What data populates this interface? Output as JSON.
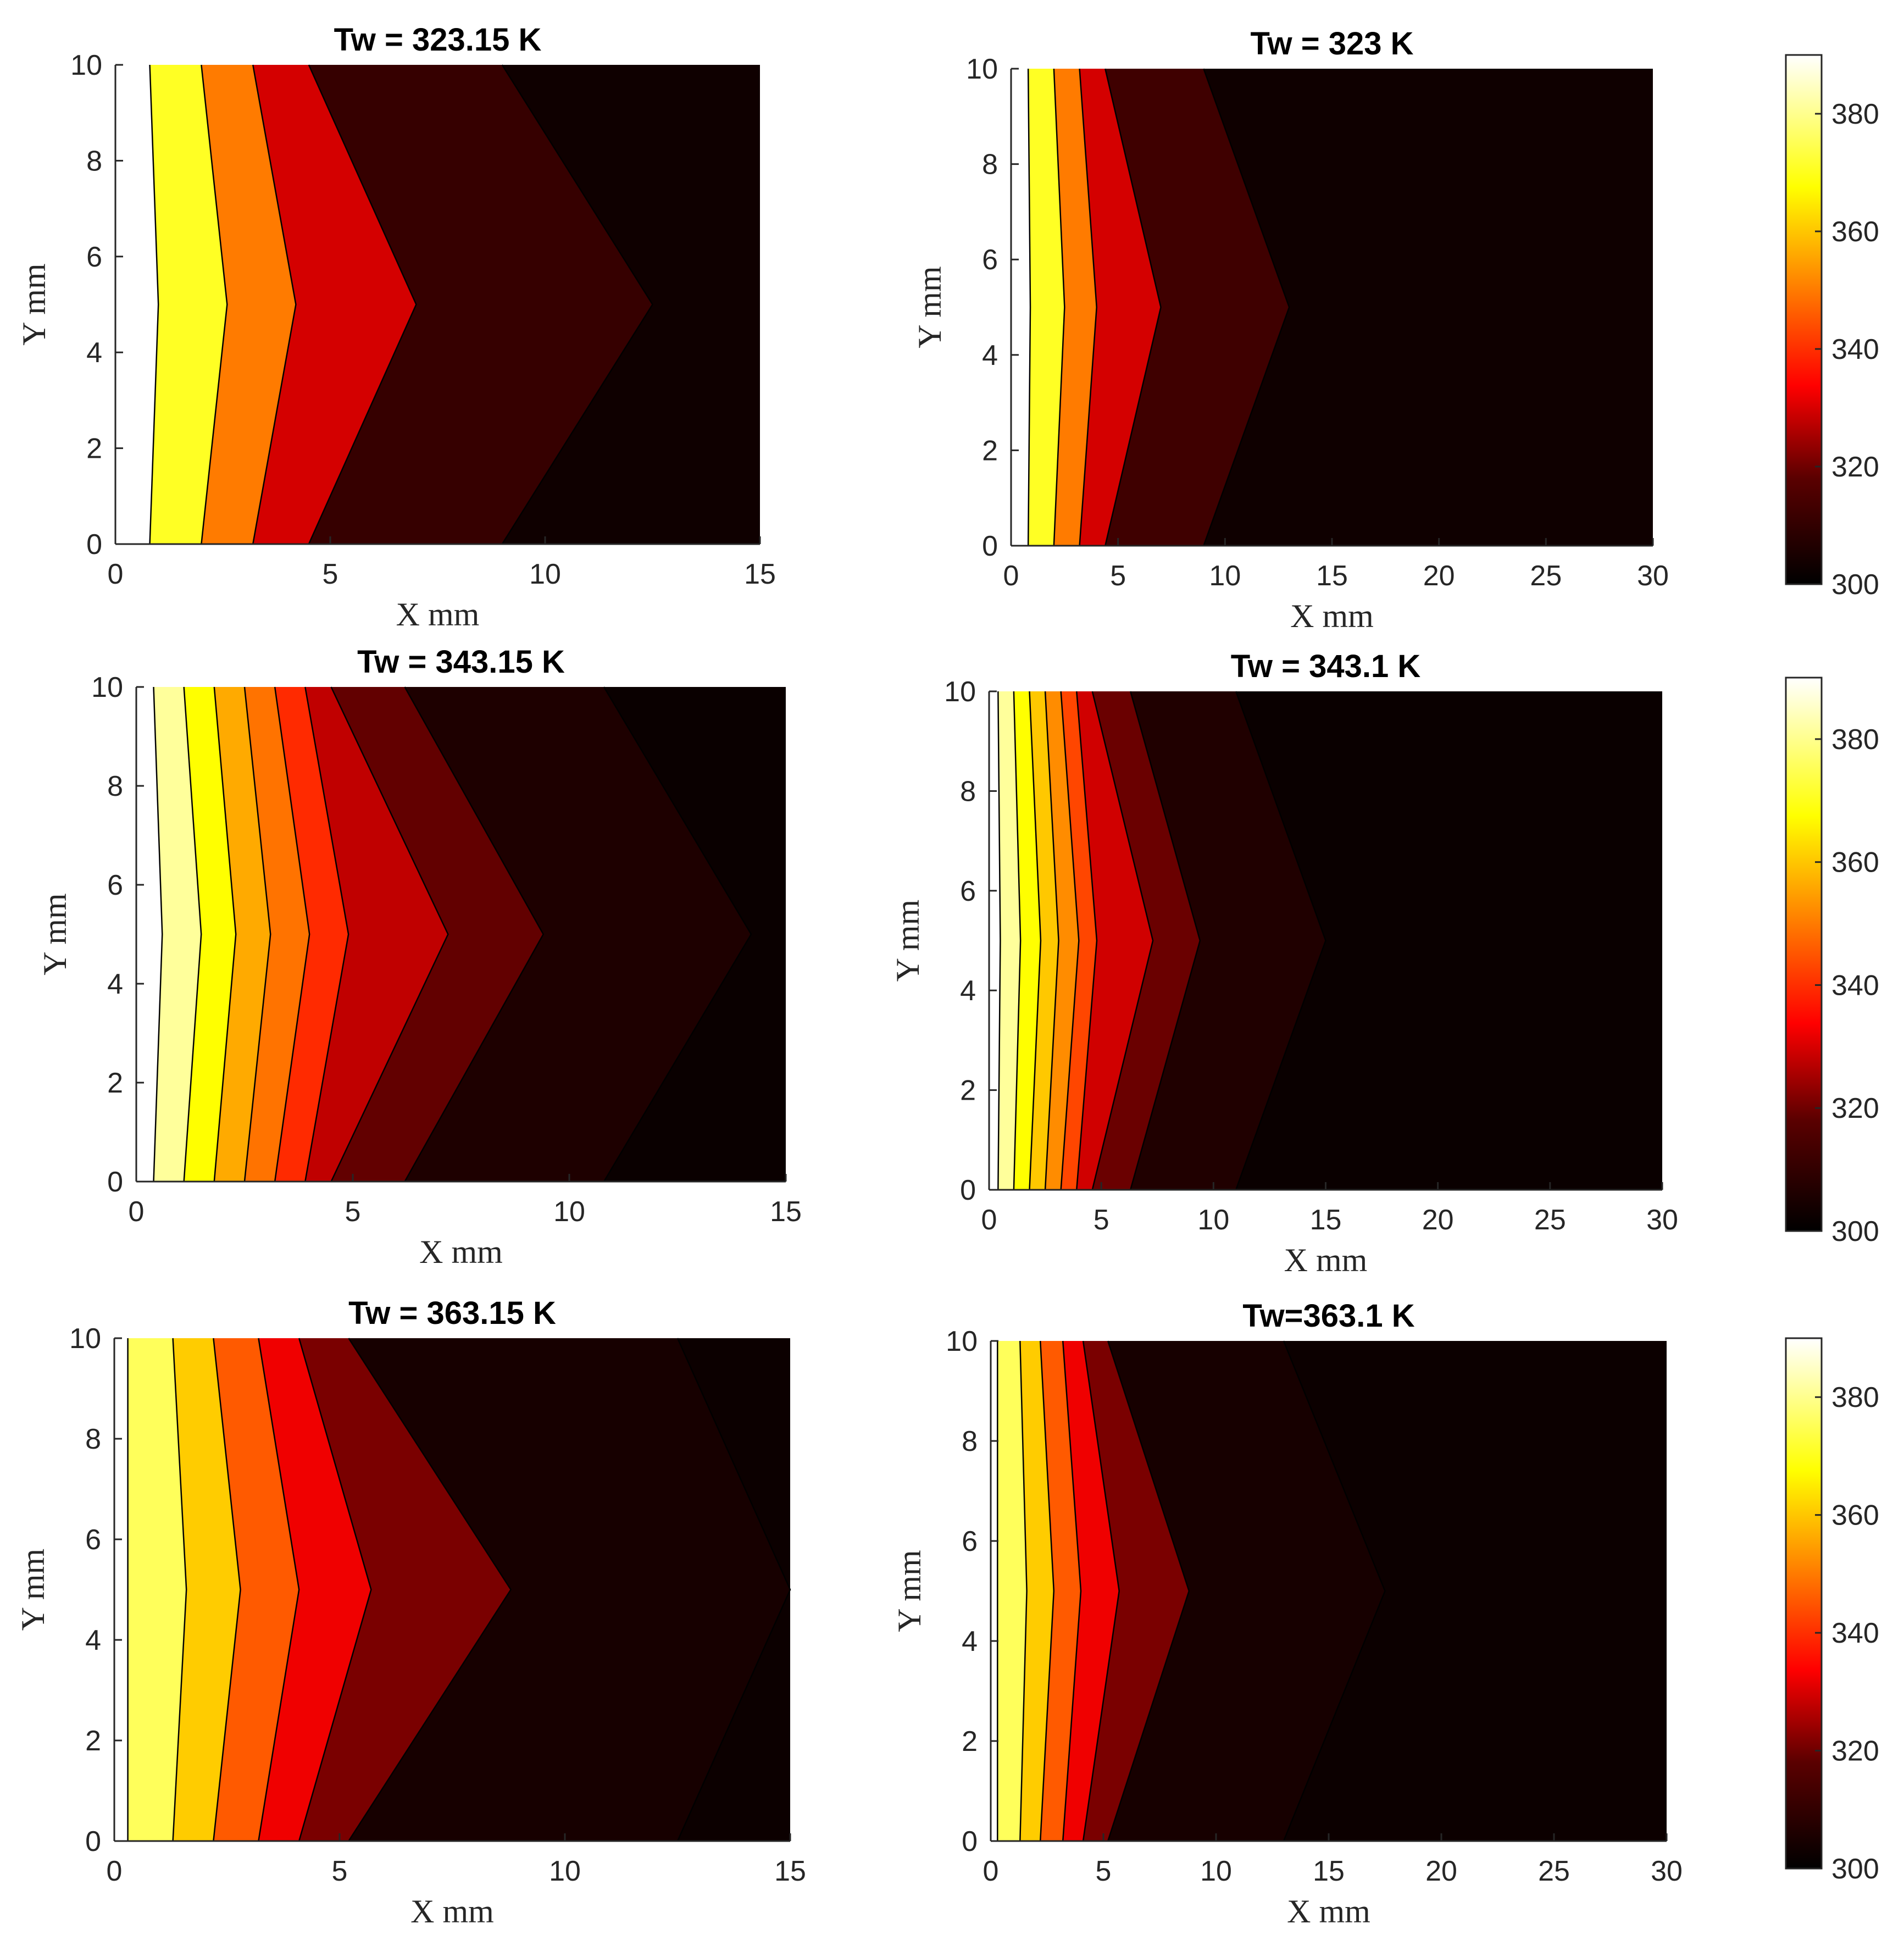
{
  "figure": {
    "description_title": "Temperature contours for six cases"
  },
  "chart_data": [
    {
      "type": "contour",
      "title": "Tw = 323.15 K",
      "xlabel": "X mm",
      "ylabel": "Y mm",
      "xlim": [
        0,
        15
      ],
      "ylim": [
        0,
        10
      ],
      "xticks": [
        0,
        5,
        10,
        15
      ],
      "yticks": [
        0,
        2,
        4,
        6,
        8,
        10
      ],
      "apex_y": 5,
      "bands": [
        {
          "color": "#ffffff",
          "edge": [
            0.8,
            1.0,
            0.8
          ]
        },
        {
          "color": "#ffff24",
          "edge": [
            2.0,
            2.6,
            2.0
          ]
        },
        {
          "color": "#ff7b00",
          "edge": [
            3.2,
            4.2,
            3.2
          ]
        },
        {
          "color": "#d40000",
          "edge": [
            4.5,
            7.0,
            4.5
          ]
        },
        {
          "color": "#360000",
          "edge": [
            9.0,
            12.5,
            9.0
          ]
        },
        {
          "color": "#0f0000",
          "edge": null
        }
      ]
    },
    {
      "type": "contour",
      "title": "Tw = 323 K",
      "xlabel": "X mm",
      "ylabel": "Y mm",
      "xlim": [
        0,
        30
      ],
      "ylim": [
        0,
        10
      ],
      "xticks": [
        0,
        5,
        10,
        15,
        20,
        25,
        30
      ],
      "yticks": [
        0,
        2,
        4,
        6,
        8,
        10
      ],
      "apex_y": 5,
      "bands": [
        {
          "color": "#ffffff",
          "edge": [
            0.8,
            0.9,
            0.8
          ]
        },
        {
          "color": "#ffff24",
          "edge": [
            2.0,
            2.5,
            2.0
          ]
        },
        {
          "color": "#ff7b00",
          "edge": [
            3.2,
            4.0,
            3.2
          ]
        },
        {
          "color": "#d40000",
          "edge": [
            4.4,
            7.0,
            4.4
          ]
        },
        {
          "color": "#3f0000",
          "edge": [
            9.0,
            13.0,
            9.0
          ]
        },
        {
          "color": "#0f0000",
          "edge": null
        }
      ]
    },
    {
      "type": "contour",
      "title": "Tw = 343.15 K",
      "xlabel": "X mm",
      "ylabel": "Y mm",
      "xlim": [
        0,
        15
      ],
      "ylim": [
        0,
        10
      ],
      "xticks": [
        0,
        5,
        10,
        15
      ],
      "yticks": [
        0,
        2,
        4,
        6,
        8,
        10
      ],
      "apex_y": 5,
      "bands": [
        {
          "color": "#ffffff",
          "edge": [
            0.4,
            0.6,
            0.4
          ]
        },
        {
          "color": "#ffff9b",
          "edge": [
            1.1,
            1.5,
            1.1
          ]
        },
        {
          "color": "#ffff00",
          "edge": [
            1.8,
            2.3,
            1.8
          ]
        },
        {
          "color": "#ffaa00",
          "edge": [
            2.5,
            3.1,
            2.5
          ]
        },
        {
          "color": "#ff7300",
          "edge": [
            3.2,
            4.0,
            3.2
          ]
        },
        {
          "color": "#ff2a00",
          "edge": [
            3.9,
            4.9,
            3.9
          ]
        },
        {
          "color": "#c00000",
          "edge": [
            4.5,
            7.2,
            4.5
          ]
        },
        {
          "color": "#620000",
          "edge": [
            6.2,
            9.4,
            6.2
          ]
        },
        {
          "color": "#1e0000",
          "edge": [
            10.8,
            14.2,
            10.8
          ]
        },
        {
          "color": "#0a0000",
          "edge": null
        }
      ]
    },
    {
      "type": "contour",
      "title": "Tw = 343.1 K",
      "xlabel": "X mm",
      "ylabel": "Y mm",
      "xlim": [
        0,
        30
      ],
      "ylim": [
        0,
        10
      ],
      "xticks": [
        0,
        5,
        10,
        15,
        20,
        25,
        30
      ],
      "yticks": [
        0,
        2,
        4,
        6,
        8,
        10
      ],
      "apex_y": 5,
      "bands": [
        {
          "color": "#ffffff",
          "edge": [
            0.4,
            0.5,
            0.4
          ]
        },
        {
          "color": "#ffff9b",
          "edge": [
            1.1,
            1.4,
            1.1
          ]
        },
        {
          "color": "#ffff00",
          "edge": [
            1.8,
            2.3,
            1.8
          ]
        },
        {
          "color": "#ffc800",
          "edge": [
            2.5,
            3.1,
            2.5
          ]
        },
        {
          "color": "#ff8c00",
          "edge": [
            3.2,
            4.0,
            3.2
          ]
        },
        {
          "color": "#ff4600",
          "edge": [
            3.9,
            4.8,
            3.9
          ]
        },
        {
          "color": "#d00000",
          "edge": [
            4.6,
            7.3,
            4.6
          ]
        },
        {
          "color": "#6a0000",
          "edge": [
            6.3,
            9.4,
            6.3
          ]
        },
        {
          "color": "#200000",
          "edge": [
            11.0,
            15.0,
            11.0
          ]
        },
        {
          "color": "#0a0000",
          "edge": null
        }
      ]
    },
    {
      "type": "contour",
      "title": "Tw = 363.15 K",
      "xlabel": "X mm",
      "ylabel": "Y mm",
      "xlim": [
        0,
        15
      ],
      "ylim": [
        0,
        10
      ],
      "xticks": [
        0,
        5,
        10,
        15
      ],
      "yticks": [
        0,
        2,
        4,
        6,
        8,
        10
      ],
      "apex_y": 5,
      "bands": [
        {
          "color": "#ffffff",
          "edge": [
            0.3,
            0.3,
            0.3
          ]
        },
        {
          "color": "#ffff5b",
          "edge": [
            1.3,
            1.6,
            1.3
          ]
        },
        {
          "color": "#ffcc00",
          "edge": [
            2.2,
            2.8,
            2.2
          ]
        },
        {
          "color": "#ff5a00",
          "edge": [
            3.2,
            4.1,
            3.2
          ]
        },
        {
          "color": "#f00000",
          "edge": [
            4.1,
            5.7,
            4.1
          ]
        },
        {
          "color": "#7a0000",
          "edge": [
            5.2,
            8.8,
            5.2
          ]
        },
        {
          "color": "#170000",
          "edge": [
            12.5,
            15.0,
            12.5
          ]
        },
        {
          "color": "#0c0000",
          "edge": null
        }
      ]
    },
    {
      "type": "contour",
      "title": "Tw=363.1 K",
      "xlabel": "X mm",
      "ylabel": "Y mm",
      "xlim": [
        0,
        30
      ],
      "ylim": [
        0,
        10
      ],
      "xticks": [
        0,
        5,
        10,
        15,
        20,
        25,
        30
      ],
      "yticks": [
        0,
        2,
        4,
        6,
        8,
        10
      ],
      "apex_y": 5,
      "bands": [
        {
          "color": "#ffffff",
          "edge": [
            0.3,
            0.3,
            0.3
          ]
        },
        {
          "color": "#ffff5b",
          "edge": [
            1.3,
            1.6,
            1.3
          ]
        },
        {
          "color": "#ffcc00",
          "edge": [
            2.2,
            2.8,
            2.2
          ]
        },
        {
          "color": "#ff5a00",
          "edge": [
            3.2,
            4.0,
            3.2
          ]
        },
        {
          "color": "#f00000",
          "edge": [
            4.1,
            5.7,
            4.1
          ]
        },
        {
          "color": "#7a0000",
          "edge": [
            5.2,
            8.8,
            5.2
          ]
        },
        {
          "color": "#170000",
          "edge": [
            13.0,
            17.5,
            13.0
          ]
        },
        {
          "color": "#0c0000",
          "edge": null
        }
      ]
    }
  ],
  "colorbars": [
    {
      "min": 300,
      "max": 390,
      "ticks": [
        300,
        320,
        340,
        360,
        380
      ]
    },
    {
      "min": 300,
      "max": 390,
      "ticks": [
        300,
        320,
        340,
        360,
        380
      ]
    },
    {
      "min": 300,
      "max": 390,
      "ticks": [
        300,
        320,
        340,
        360,
        380
      ]
    }
  ]
}
